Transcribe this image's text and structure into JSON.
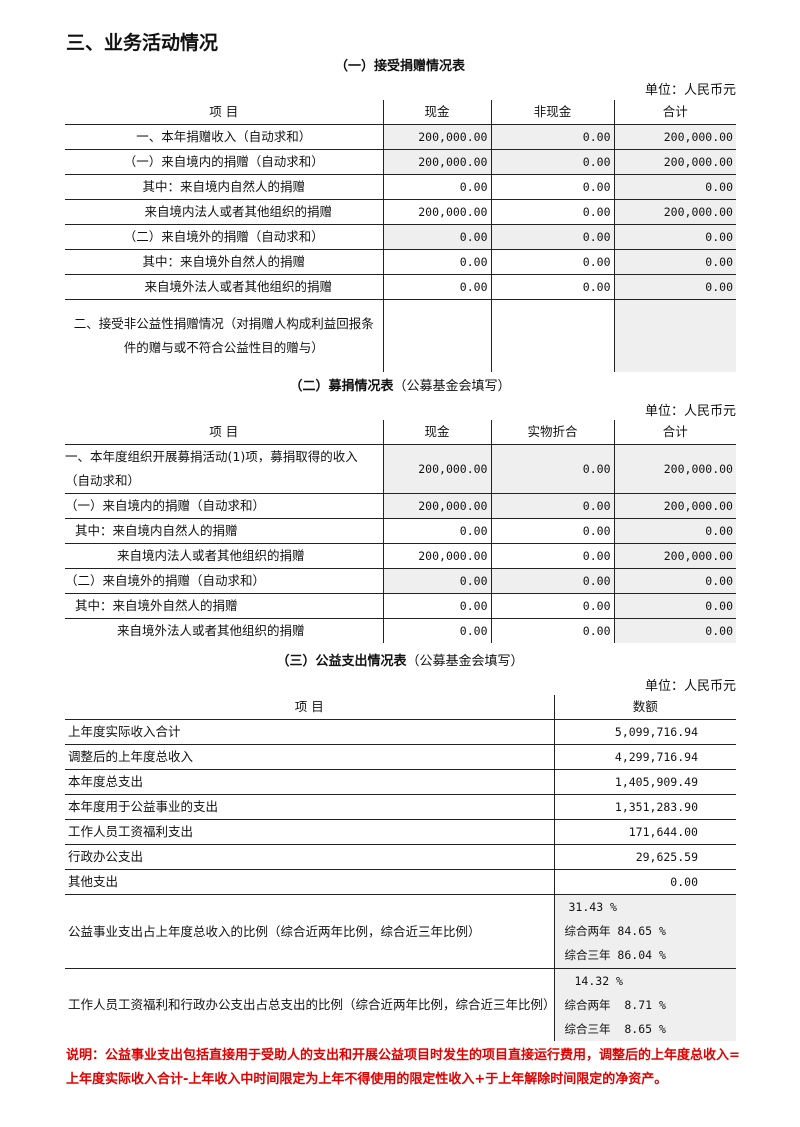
{
  "title": "三、业务活动情况",
  "colors": {
    "shaded": "#efefef",
    "note": "#e00000"
  },
  "table1": {
    "caption": "（一）接受捐赠情况表",
    "unit": "单位：人民币元",
    "headers": [
      "项 目",
      "现金",
      "非现金",
      "合计"
    ],
    "rows": [
      {
        "label": "一、本年捐赠收入（自动求和）",
        "values": [
          "200,000.00",
          "0.00",
          "200,000.00"
        ]
      },
      {
        "label": "（一）来自境内的捐赠（自动求和）",
        "values": [
          "200,000.00",
          "0.00",
          "200,000.00"
        ]
      },
      {
        "label": "其中：来自境内自然人的捐赠",
        "values": [
          "0.00",
          "0.00",
          "0.00"
        ]
      },
      {
        "label": "来自境内法人或者其他组织的捐赠",
        "values": [
          "200,000.00",
          "0.00",
          "200,000.00"
        ]
      },
      {
        "label": "（二）来自境外的捐赠（自动求和）",
        "values": [
          "0.00",
          "0.00",
          "0.00"
        ]
      },
      {
        "label": "其中：来自境外自然人的捐赠",
        "values": [
          "0.00",
          "0.00",
          "0.00"
        ]
      },
      {
        "label": "来自境外法人或者其他组织的捐赠",
        "values": [
          "0.00",
          "0.00",
          "0.00"
        ]
      },
      {
        "label": "二、接受非公益性捐赠情况（对捐赠人构成利益回报条件的赠与或不符合公益性目的赠与）",
        "values": [
          "",
          "",
          ""
        ]
      }
    ]
  },
  "table2": {
    "caption": "（二）募捐情况表",
    "caption_note": "（公募基金会填写）",
    "unit": "单位：人民币元",
    "headers": [
      "项 目",
      "现金",
      "实物折合",
      "合计"
    ],
    "rows": [
      {
        "label": "一、本年度组织开展募捐活动(1)项，募捐取得的收入（自动求和）",
        "values": [
          "200,000.00",
          "0.00",
          "200,000.00"
        ]
      },
      {
        "label": "（一）来自境内的捐赠（自动求和）",
        "values": [
          "200,000.00",
          "0.00",
          "200,000.00"
        ]
      },
      {
        "label": "其中：来自境内自然人的捐赠",
        "values": [
          "0.00",
          "0.00",
          "0.00"
        ]
      },
      {
        "label": "来自境内法人或者其他组织的捐赠",
        "values": [
          "200,000.00",
          "0.00",
          "200,000.00"
        ]
      },
      {
        "label": "（二）来自境外的捐赠（自动求和）",
        "values": [
          "0.00",
          "0.00",
          "0.00"
        ]
      },
      {
        "label": "其中：来自境外自然人的捐赠",
        "values": [
          "0.00",
          "0.00",
          "0.00"
        ]
      },
      {
        "label": "来自境外法人或者其他组织的捐赠",
        "values": [
          "0.00",
          "0.00",
          "0.00"
        ]
      }
    ]
  },
  "table3": {
    "caption": "（三）公益支出情况表",
    "caption_note": "（公募基金会填写）",
    "unit": "单位：人民币元",
    "headers": [
      "项 目",
      "数额"
    ],
    "rows": [
      {
        "label": "上年度实际收入合计",
        "value": "5,099,716.94"
      },
      {
        "label": "调整后的上年度总收入",
        "value": "4,299,716.94"
      },
      {
        "label": "本年度总支出",
        "value": "1,405,909.49"
      },
      {
        "label": "本年度用于公益事业的支出",
        "value": "1,351,283.90"
      },
      {
        "label": "工作人员工资福利支出",
        "value": "171,644.00"
      },
      {
        "label": "行政办公支出",
        "value": "29,625.59"
      },
      {
        "label": "其他支出",
        "value": "0.00"
      }
    ],
    "ratios": [
      {
        "label": "公益事业支出占上年度总收入的比例（综合近两年比例，综合近三年比例）",
        "lines": [
          "31.43 %",
          "综合两年 84.65 %",
          "综合三年 86.04 %"
        ]
      },
      {
        "label": "工作人员工资福利和行政办公支出占总支出的比例（综合近两年比例，综合近三年比例）",
        "lines": [
          "14.32 %",
          "综合两年  8.71 %",
          "综合三年  8.65 %"
        ]
      }
    ]
  },
  "note": "说明：公益事业支出包括直接用于受助人的支出和开展公益项目时发生的项目直接运行费用，调整后的上年度总收入=上年度实际收入合计-上年收入中时间限定为上年不得使用的限定性收入+于上年解除时间限定的净资产。"
}
